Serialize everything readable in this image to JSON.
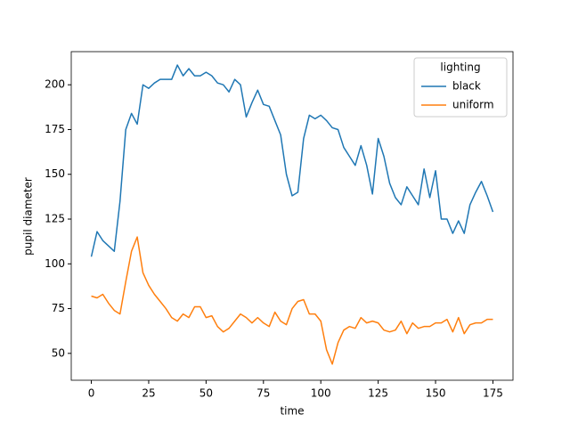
{
  "chart_data": {
    "type": "line",
    "x_label": "time",
    "y_label": "pupil diameter",
    "legend_title": "lighting",
    "legend": "upper right",
    "grid": false,
    "x": [
      0,
      2.5,
      5,
      7.5,
      10,
      12.5,
      15,
      17.5,
      20,
      22.5,
      25,
      27.5,
      30,
      32.5,
      35,
      37.5,
      40,
      42.5,
      45,
      47.5,
      50,
      52.5,
      55,
      57.5,
      60,
      62.5,
      65,
      67.5,
      70,
      72.5,
      75,
      77.5,
      80,
      82.5,
      85,
      87.5,
      90,
      92.5,
      95,
      97.5,
      100,
      102.5,
      105,
      107.5,
      110,
      112.5,
      115,
      117.5,
      120,
      122.5,
      125,
      127.5,
      130,
      132.5,
      135,
      137.5,
      140,
      142.5,
      145,
      147.5,
      150,
      152.5,
      155,
      157.5,
      160,
      162.5,
      165,
      167.5,
      170,
      172.5,
      175
    ],
    "series": [
      {
        "name": "black",
        "color": "#1f77b4",
        "values": [
          104,
          118,
          113,
          110,
          107,
          135,
          175,
          184,
          178,
          200,
          198,
          201,
          203,
          203,
          203,
          211,
          205,
          209,
          205,
          205,
          207,
          205,
          201,
          200,
          196,
          203,
          200,
          182,
          190,
          197,
          189,
          188,
          180,
          172,
          150,
          138,
          140,
          170,
          183,
          181,
          183,
          180,
          176,
          175,
          165,
          160,
          155,
          166,
          155,
          139,
          170,
          160,
          145,
          137,
          133,
          143,
          138,
          133,
          153,
          137,
          152,
          125,
          125,
          117,
          124,
          117,
          133,
          140,
          146,
          138,
          129
        ]
      },
      {
        "name": "uniform",
        "color": "#ff7f0e",
        "values": [
          82,
          81,
          83,
          78,
          74,
          72,
          90,
          107,
          115,
          95,
          88,
          83,
          79,
          75,
          70,
          68,
          72,
          70,
          76,
          76,
          70,
          71,
          65,
          62,
          64,
          68,
          72,
          70,
          67,
          70,
          67,
          65,
          73,
          68,
          66,
          75,
          79,
          80,
          72,
          72,
          68,
          52,
          44,
          56,
          63,
          65,
          64,
          70,
          67,
          68,
          67,
          63,
          62,
          63,
          68,
          61,
          67,
          64,
          65,
          65,
          67,
          67,
          69,
          62,
          70,
          61,
          66,
          67,
          67,
          69,
          69
        ]
      }
    ],
    "xlim": [
      -8.75,
      183.75
    ],
    "xticks": [
      0,
      25,
      50,
      75,
      100,
      125,
      150,
      175
    ],
    "ylim": [
      35,
      218.5
    ],
    "yticks": [
      50,
      75,
      100,
      125,
      150,
      175,
      200
    ]
  }
}
